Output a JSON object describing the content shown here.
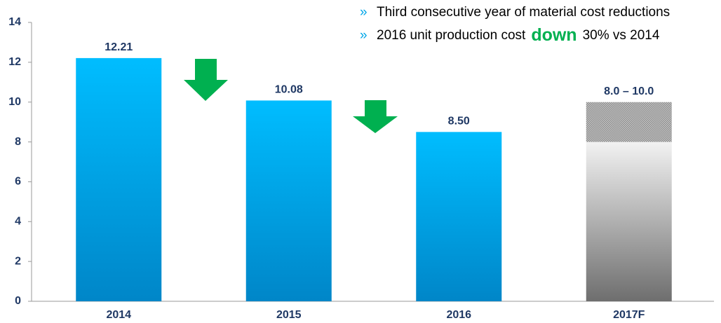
{
  "chart_data": {
    "type": "bar",
    "categories": [
      "2014",
      "2015",
      "2016",
      "2017F"
    ],
    "values": [
      12.21,
      10.08,
      8.5,
      null
    ],
    "value_labels": [
      "12.21",
      "10.08",
      "8.50",
      null
    ],
    "forecast": {
      "low": 8.0,
      "high": 10.0,
      "label": "8.0 – 10.0"
    },
    "color": "#00b4f8",
    "forecast_color": "#9a9a9a",
    "ylim": [
      0,
      14
    ],
    "yticks": [
      0,
      2,
      4,
      6,
      8,
      10,
      12,
      14
    ],
    "grid": false,
    "notes": {
      "bullet": "»",
      "lines": [
        [
          "Third consecutive year of material cost reductions"
        ],
        [
          "2016 unit production cost",
          "down",
          "30% vs 2014"
        ]
      ]
    }
  }
}
